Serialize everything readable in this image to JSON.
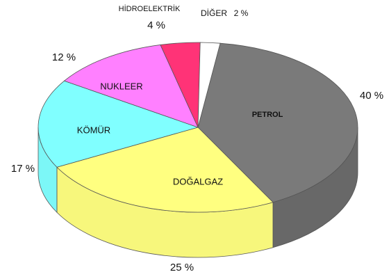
{
  "chart_data": {
    "type": "pie",
    "categories": [
      "PETROL",
      "DOĞALGAZ",
      "KÖMÜR",
      "NUKLEER",
      "HİDROELEKTRİK",
      "DİĞER"
    ],
    "values": [
      40,
      25,
      17,
      12,
      4,
      2
    ],
    "value_labels": [
      "40 %",
      "25 %",
      "17 %",
      "12 %",
      "4 %",
      "2 %"
    ],
    "colors": [
      "#7a7a7a",
      "#ffff80",
      "#80ffff",
      "#ff80ff",
      "#ff3377",
      "#ffffff"
    ]
  }
}
